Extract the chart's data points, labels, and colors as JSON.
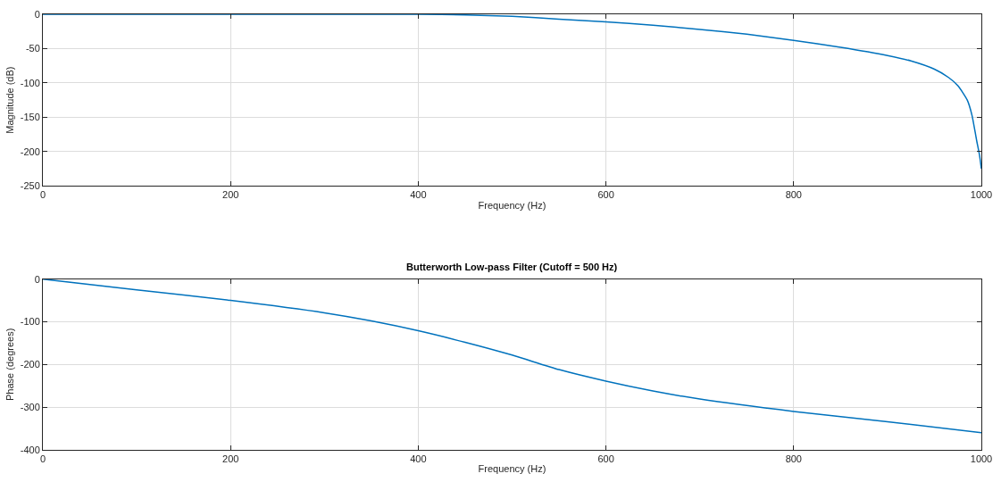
{
  "chart_data": [
    {
      "type": "line",
      "xlabel": "Frequency (Hz)",
      "ylabel": "Magnitude (dB)",
      "x": [
        0,
        100,
        200,
        300,
        400,
        450,
        500,
        550,
        600,
        650,
        700,
        750,
        800,
        850,
        900,
        925,
        950,
        965,
        975,
        985,
        990,
        995,
        998,
        1000
      ],
      "series": [
        {
          "color": "#0072bd",
          "values": [
            0,
            0,
            0,
            0,
            0,
            -1,
            -3,
            -7,
            -11,
            -16,
            -22,
            -29,
            -38,
            -48,
            -60,
            -68,
            -80,
            -92,
            -104,
            -125,
            -147,
            -184,
            -205,
            -225
          ]
        }
      ],
      "xlim": [
        0,
        1000
      ],
      "xticks": [
        0,
        200,
        400,
        600,
        800,
        1000
      ],
      "ylim": [
        -250,
        0
      ],
      "yticks": [
        -250,
        -200,
        -150,
        -100,
        -50,
        0
      ],
      "grid": true,
      "legend": false
    },
    {
      "type": "line",
      "title": "Butterworth Low-pass Filter (Cutoff = 500 Hz)",
      "xlabel": "Frequency (Hz)",
      "ylabel": "Phase (degrees)",
      "x": [
        0,
        100,
        200,
        300,
        350,
        400,
        450,
        500,
        550,
        600,
        650,
        700,
        800,
        900,
        1000
      ],
      "series": [
        {
          "color": "#0072bd",
          "values": [
            0,
            -25,
            -50,
            -79,
            -98,
            -121,
            -148,
            -178,
            -212,
            -239,
            -262,
            -281,
            -310,
            -334,
            -360
          ]
        }
      ],
      "xlim": [
        0,
        1000
      ],
      "xticks": [
        0,
        200,
        400,
        600,
        800,
        1000
      ],
      "ylim": [
        -400,
        0
      ],
      "yticks": [
        -400,
        -300,
        -200,
        -100,
        0
      ],
      "grid": true,
      "legend": false
    }
  ]
}
